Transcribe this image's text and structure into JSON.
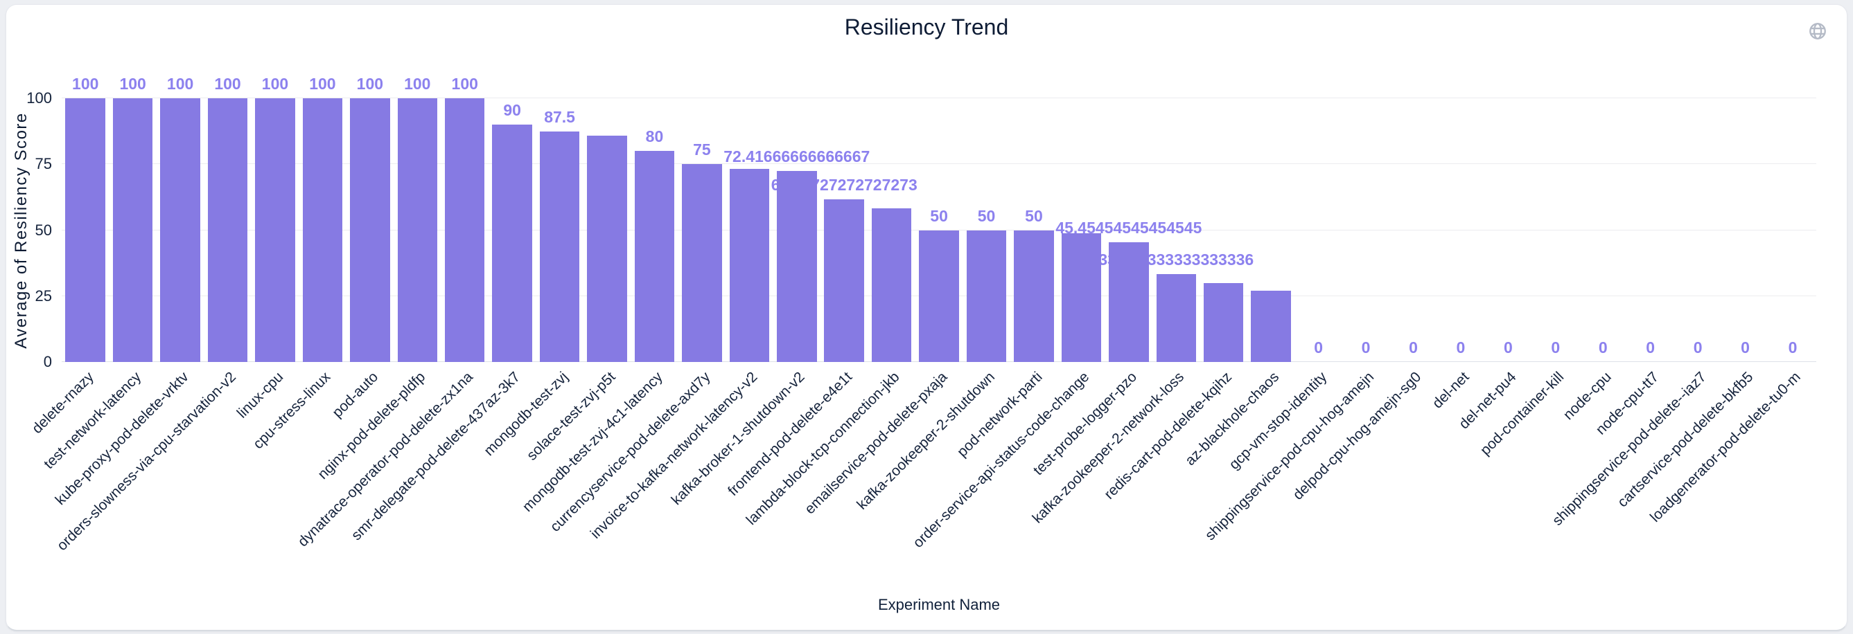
{
  "header": {
    "title": "Resiliency Trend",
    "top_right_icon": "globe-icon"
  },
  "chart_data": {
    "type": "bar",
    "title": "Resiliency Trend",
    "xlabel": "Experiment Name",
    "ylabel": "Average of Resiliency Score",
    "ylim": [
      0,
      100
    ],
    "yticks": [
      0,
      25,
      50,
      75,
      100
    ],
    "grid": true,
    "legend": false,
    "categories": [
      "delete-rnazy",
      "test-network-latency",
      "kube-proxy-pod-delete-vrktv",
      "orders-slowness-via-cpu-starvation-v2",
      "linux-cpu",
      "cpu-stress-linux",
      "pod-auto",
      "nginx-pod-delete-pldfp",
      "dynatrace-operator-pod-delete-zx1na",
      "smr-delegate-pod-delete-437az-3k7",
      "mongodb-test-zvj",
      "solace-test-zvj-p5t",
      "mongodb-test-zvj-4c1-latency",
      "currencyservice-pod-delete-axd7y",
      "invoice-to-kafka-network-latency-v2",
      "kafka-broker-1-shutdown-v2",
      "frontend-pod-delete-e4e1t",
      "lambda-block-tcp-connection-jkb",
      "emailservice-pod-delete-pxaja",
      "kafka-zookeeper-2-shutdown",
      "pod-network-parti",
      "order-service-api-status-code-change",
      "test-probe-logger-pzo",
      "kafka-zookeeper-2-network-loss",
      "redis-cart-pod-delete-kqihz",
      "az-blackhole-chaos",
      "gcp-vm-stop-identity",
      "shippingservice-pod-cpu-hog-amejn",
      "delpod-cpu-hog-amejn-sg0",
      "del-net",
      "del-net-pu4",
      "pod-container-kill",
      "node-cpu",
      "node-cpu-tt7",
      "shippingservice-pod-delete--iaz7",
      "cartservice-pod-delete-bkfb5",
      "loadgenerator-pod-delete-tu0-m"
    ],
    "values": [
      100,
      100,
      100,
      100,
      100,
      100,
      100,
      100,
      100,
      90,
      87.5,
      85.83333333333333,
      80,
      75,
      73.33333333333333,
      72.41666666666667,
      61.72727272727273,
      58.333333333333336,
      50,
      50,
      50,
      48.86363636363636,
      45.45454545454545,
      33.333333333333336,
      30,
      27,
      0,
      0,
      0,
      0,
      0,
      0,
      0,
      0,
      0,
      0,
      0
    ],
    "value_labels": [
      "100",
      "100",
      "100",
      "100",
      "100",
      "100",
      "100",
      "100",
      "100",
      "90",
      "87.5",
      "",
      "80",
      "75",
      "",
      "72.41666666666667",
      "61.72727272727273",
      "",
      "50",
      "50",
      "50",
      "",
      "45.45454545454545",
      "33.333333333333336",
      "",
      "",
      "0",
      "0",
      "0",
      "0",
      "0",
      "0",
      "0",
      "0",
      "0",
      "0",
      "0"
    ]
  },
  "colors": {
    "bar": "#867AE3",
    "value_label": "#8C81EE",
    "axis_text": "#15233C",
    "title_text": "#0E1C35",
    "grid_line": "#ECECEF",
    "axis_line": "#DDE1E8",
    "page_bg": "#EDEFF3",
    "card_bg": "#FFFFFF",
    "icon": "#B4BAC6"
  }
}
